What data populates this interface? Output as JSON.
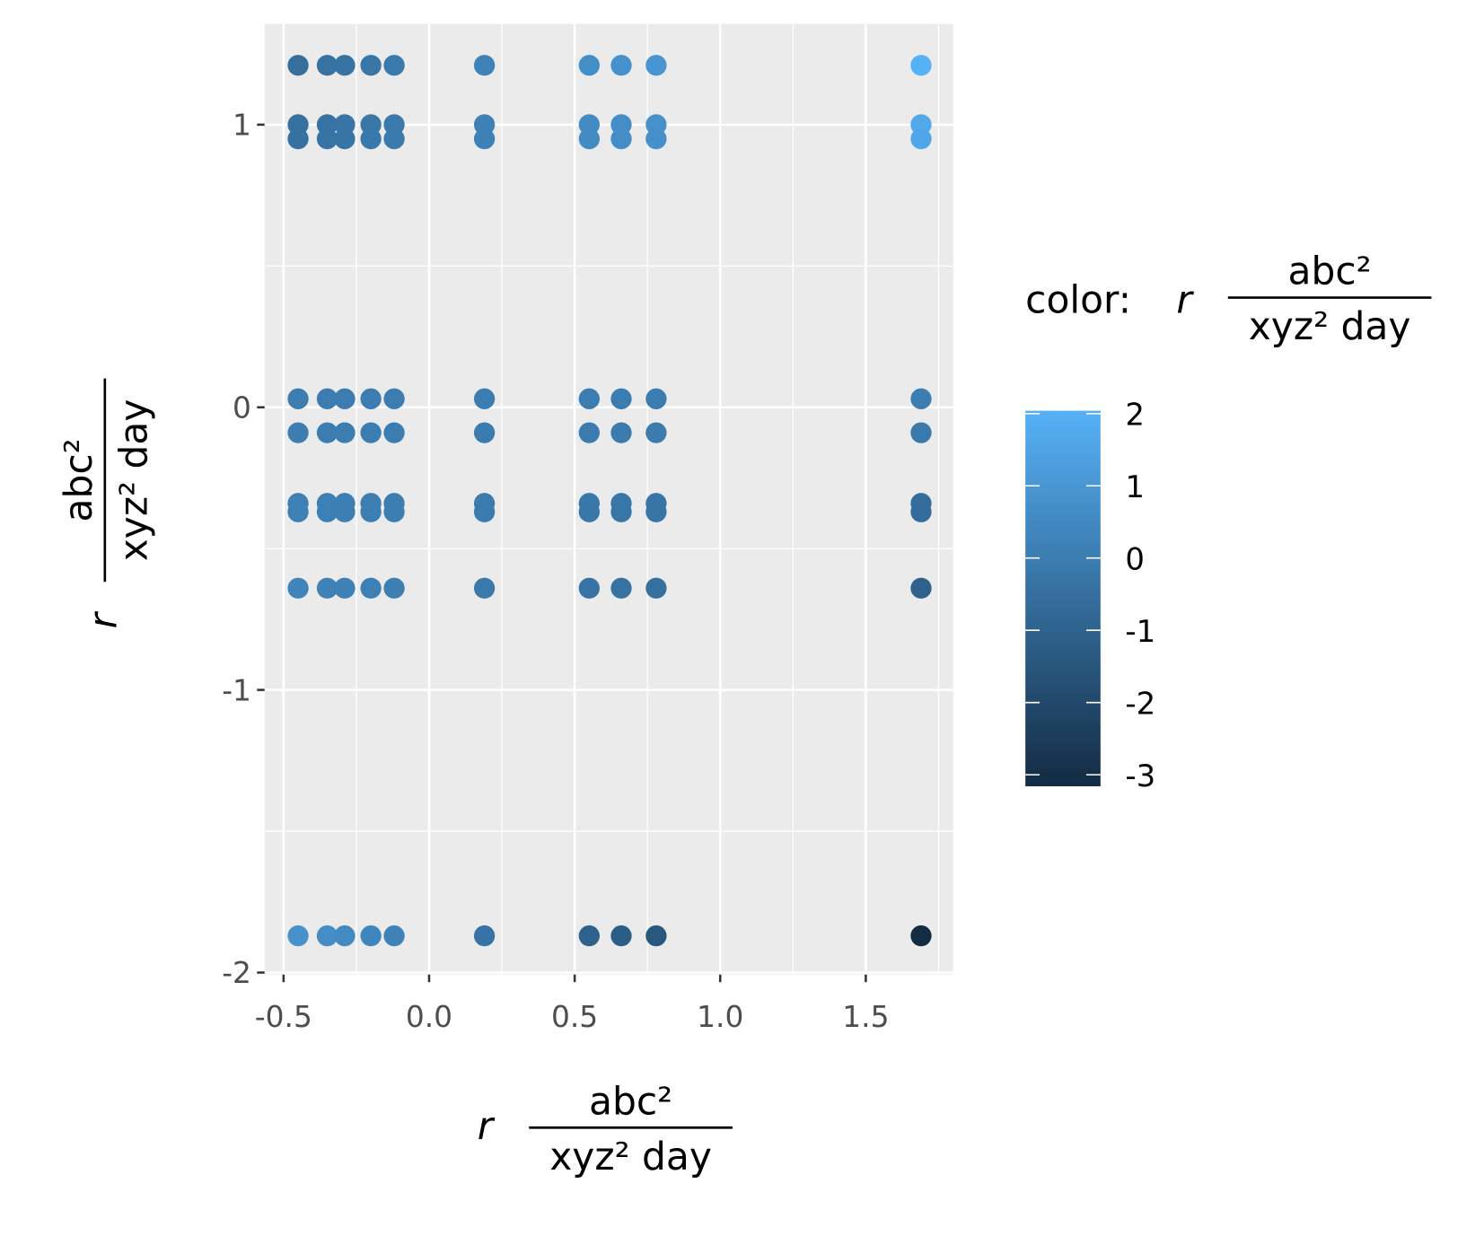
{
  "chart_data": {
    "type": "scatter",
    "x_label": {
      "var": "r",
      "numerator": "abc²",
      "denominator": "xyz² day"
    },
    "y_label": {
      "var": "r",
      "numerator": "abc²",
      "denominator": "xyz² day"
    },
    "legend_title": {
      "prefix": "color:",
      "var": "r",
      "numerator": "abc²",
      "denominator": "xyz² day"
    },
    "xlim": [
      -0.565,
      1.8
    ],
    "ylim": [
      -2.007,
      1.357
    ],
    "xticks": [
      -0.5,
      {
        "value": 0,
        "label": "0.0"
      },
      0.5,
      {
        "value": 1,
        "label": "1.0"
      },
      1.5
    ],
    "yticks": [
      -2,
      -1,
      0,
      1
    ],
    "xminor": [
      -0.25,
      0.25,
      0.75,
      1.25,
      1.75
    ],
    "yminor": [
      -1.5,
      -0.5,
      0.5
    ],
    "grid": true,
    "color_scale": {
      "low": "#132B43",
      "high": "#56B1F7",
      "limits": [
        -3.16,
        2.04
      ],
      "ticks": [
        -3,
        -2,
        -1,
        0,
        1,
        2
      ]
    },
    "x": [
      -0.45,
      -0.35,
      -0.29,
      -0.2,
      -0.12,
      0.19,
      0.55,
      0.66,
      0.78,
      1.69,
      -0.45,
      -0.35,
      -0.29,
      -0.2,
      -0.12,
      0.19,
      0.55,
      0.66,
      0.78,
      1.69,
      -0.45,
      -0.35,
      -0.29,
      -0.2,
      -0.12,
      0.19,
      0.55,
      0.66,
      0.78,
      1.69,
      -0.45,
      -0.35,
      -0.29,
      -0.2,
      -0.12,
      0.19,
      0.55,
      0.66,
      0.78,
      1.69,
      -0.45,
      -0.35,
      -0.29,
      -0.2,
      -0.12,
      0.19,
      0.55,
      0.66,
      0.78,
      1.69,
      -0.45,
      -0.35,
      -0.29,
      -0.2,
      -0.12,
      0.19,
      0.55,
      0.66,
      0.78,
      1.69,
      -0.45,
      -0.35,
      -0.29,
      -0.2,
      -0.12,
      0.19,
      0.55,
      0.66,
      0.78,
      1.69,
      -0.45,
      -0.35,
      -0.29,
      -0.2,
      -0.12,
      0.19,
      0.55,
      0.66,
      0.78,
      1.69,
      -0.45,
      -0.35,
      -0.29,
      -0.2,
      -0.12,
      0.19,
      0.55,
      0.66,
      0.78,
      1.69
    ],
    "y": [
      1.21,
      1.21,
      1.21,
      1.21,
      1.21,
      1.21,
      1.21,
      1.21,
      1.21,
      1.21,
      1,
      1,
      1,
      1,
      1,
      1,
      1,
      1,
      1,
      1,
      0.95,
      0.95,
      0.95,
      0.95,
      0.95,
      0.95,
      0.95,
      0.95,
      0.95,
      0.95,
      0.03,
      0.03,
      0.03,
      0.03,
      0.03,
      0.03,
      0.03,
      0.03,
      0.03,
      0.03,
      -0.09,
      -0.09,
      -0.09,
      -0.09,
      -0.09,
      -0.09,
      -0.09,
      -0.09,
      -0.09,
      -0.09,
      -0.34,
      -0.34,
      -0.34,
      -0.34,
      -0.34,
      -0.34,
      -0.34,
      -0.34,
      -0.34,
      -0.34,
      -0.37,
      -0.37,
      -0.37,
      -0.37,
      -0.37,
      -0.37,
      -0.37,
      -0.37,
      -0.37,
      -0.37,
      -0.64,
      -0.64,
      -0.64,
      -0.64,
      -0.64,
      -0.64,
      -0.64,
      -0.64,
      -0.64,
      -0.64,
      -1.87,
      -1.87,
      -1.87,
      -1.87,
      -1.87,
      -1.87,
      -1.87,
      -1.87,
      -1.87,
      -1.87
    ],
    "color_values": [
      -0.54,
      -0.42,
      -0.35,
      -0.24,
      -0.15,
      0.23,
      0.67,
      0.8,
      0.94,
      2.04,
      -0.45,
      -0.35,
      -0.29,
      -0.2,
      -0.12,
      0.19,
      0.55,
      0.66,
      0.78,
      1.69,
      -0.43,
      -0.33,
      -0.28,
      -0.19,
      -0.11,
      0.18,
      0.52,
      0.63,
      0.74,
      1.61,
      -0.01,
      -0.01,
      -0.01,
      -0.01,
      0,
      0.01,
      0.02,
      0.02,
      0.02,
      0.05,
      0.04,
      0.03,
      0.03,
      0.02,
      0.01,
      -0.02,
      -0.05,
      -0.06,
      -0.07,
      -0.15,
      0.15,
      0.12,
      0.1,
      0.07,
      0.04,
      -0.06,
      -0.19,
      -0.22,
      -0.27,
      -0.57,
      0.17,
      0.13,
      0.11,
      0.07,
      0.04,
      -0.07,
      -0.2,
      -0.24,
      -0.29,
      -0.63,
      0.29,
      0.22,
      0.19,
      0.13,
      0.08,
      -0.12,
      -0.35,
      -0.42,
      -0.5,
      -1.08,
      0.84,
      0.65,
      0.54,
      0.37,
      0.22,
      -0.36,
      -1.03,
      -1.23,
      -1.46,
      -3.16
    ]
  }
}
